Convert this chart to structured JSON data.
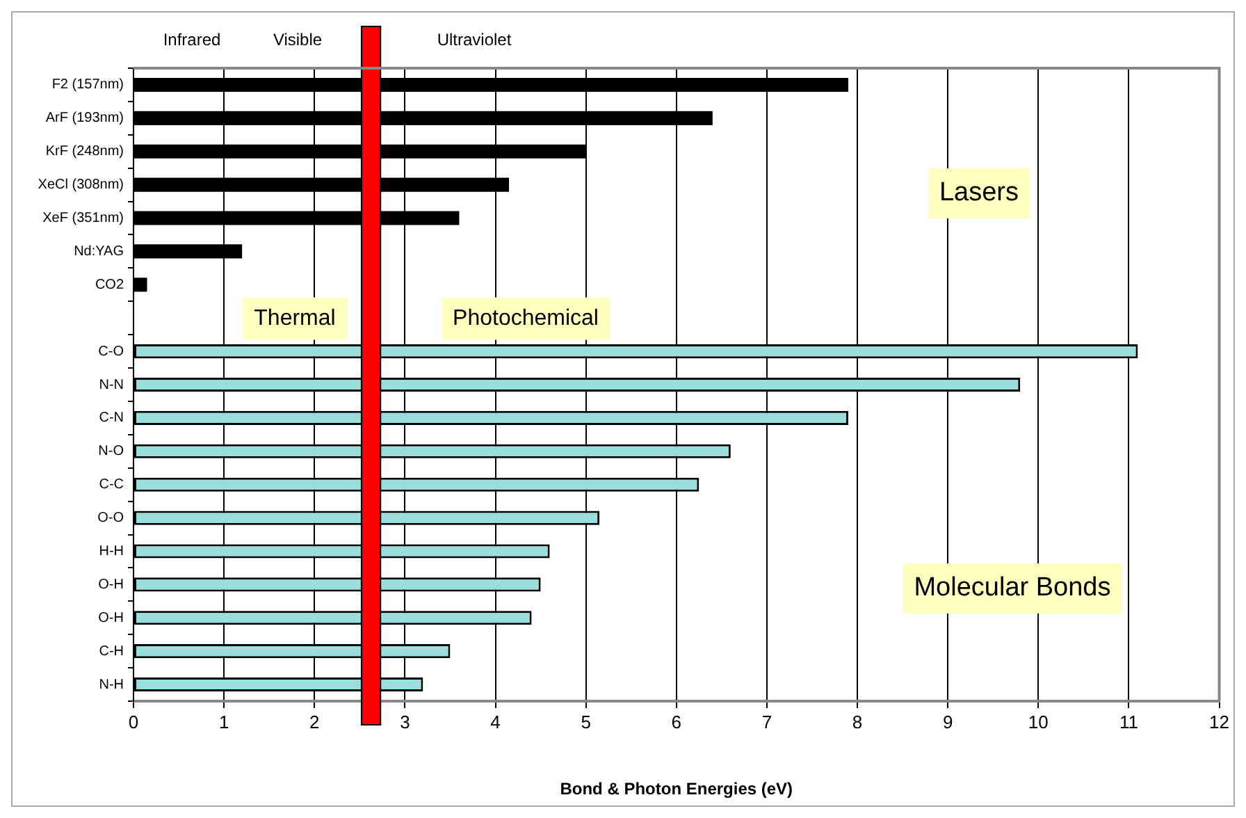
{
  "chart_data": {
    "type": "bar",
    "orientation": "horizontal",
    "xlabel": "Bond & Photon Energies (eV)",
    "categories": [
      "F2 (157nm)",
      "ArF (193nm)",
      "KrF (248nm)",
      "XeCl (308nm)",
      "XeF (351nm)",
      "Nd:YAG",
      "CO2",
      null,
      "C-O",
      "N-N",
      "C-N",
      "N-O",
      "C-C",
      "O-O",
      "H-H",
      "O-H",
      "O-H",
      "C-H",
      "N-H"
    ],
    "series": [
      {
        "color": "#000000",
        "values": [
          7.9,
          6.4,
          5.0,
          4.15,
          3.6,
          1.2,
          0.15,
          null,
          null,
          null,
          null,
          null,
          null,
          null,
          null,
          null,
          null,
          null,
          null
        ]
      },
      {
        "color": "#99dddd",
        "values": [
          null,
          null,
          null,
          null,
          null,
          null,
          null,
          null,
          11.1,
          9.8,
          7.9,
          6.6,
          6.25,
          5.15,
          4.6,
          4.5,
          4.4,
          3.5,
          3.2
        ]
      }
    ],
    "xlim": [
      0,
      12
    ],
    "xticks": [
      0,
      1,
      2,
      3,
      4,
      5,
      6,
      7,
      8,
      9,
      10,
      11,
      12
    ],
    "grid": "x",
    "legend": false,
    "bands": [
      {
        "axis": "x",
        "from": 2.52,
        "to": 2.73,
        "color": "#ff0000"
      }
    ],
    "annotations": [
      "Infrared",
      "Visible",
      "Ultraviolet",
      "Thermal",
      "Photochemical",
      "Lasers",
      "Molecular Bonds"
    ]
  }
}
